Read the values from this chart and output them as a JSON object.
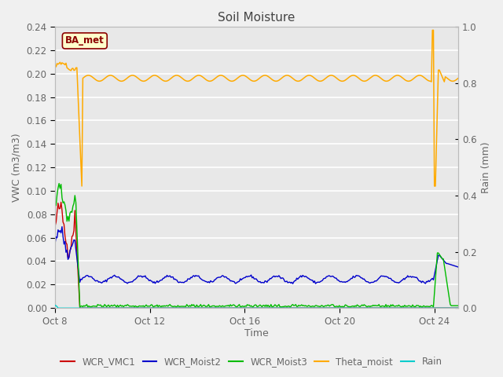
{
  "title": "Soil Moisture",
  "ylabel_left": "VWC (m3/m3)",
  "ylabel_right": "Rain (mm)",
  "xlabel": "Time",
  "ylim_left": [
    0.0,
    0.24
  ],
  "ylim_right": [
    0.0,
    1.0
  ],
  "xtick_labels": [
    "Oct 8",
    "Oct 12",
    "Oct 16",
    "Oct 20",
    "Oct 24"
  ],
  "fig_bg_color": "#f0f0f0",
  "plot_bg_color": "#e8e8e8",
  "grid_color": "#ffffff",
  "legend_colors": [
    "#cc0000",
    "#0000cc",
    "#00cc00",
    "#ffaa00",
    "#00cccc"
  ],
  "label_color": "#666666",
  "title_color": "#444444",
  "ba_met_text_color": "#8b0000",
  "ba_met_bg": "#ffffcc",
  "ba_met_edge": "#8b0000"
}
